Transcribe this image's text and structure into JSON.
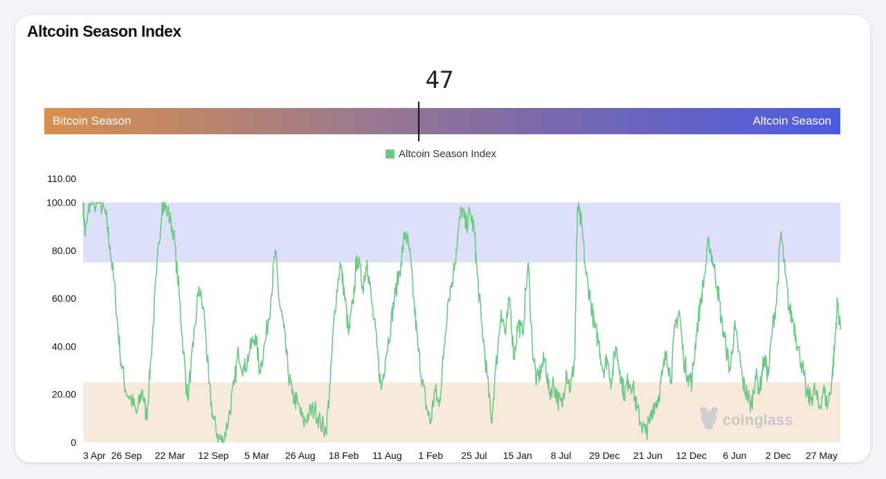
{
  "title": "Altcoin Season Index",
  "gauge": {
    "value": 47,
    "value_label": "47",
    "left_label": "Bitcoin Season",
    "right_label": "Altcoin Season"
  },
  "legend": {
    "label": "Altcoin Season Index",
    "color": "#6cc985"
  },
  "watermark": "coinglass",
  "colors": {
    "line": "#6cc985",
    "altcoin_band": "#dde0f8",
    "bitcoin_band": "#f7e9dc"
  },
  "chart_data": {
    "type": "line",
    "series": [
      {
        "name": "Altcoin Season Index",
        "keypoints": [
          [
            0,
            100
          ],
          [
            0.15,
            86
          ],
          [
            0.5,
            100
          ],
          [
            1.2,
            100
          ],
          [
            1.6,
            95
          ],
          [
            1.9,
            82
          ],
          [
            2.3,
            60
          ],
          [
            2.6,
            38
          ],
          [
            3.0,
            22
          ],
          [
            3.4,
            18
          ],
          [
            3.8,
            12
          ],
          [
            4.2,
            22
          ],
          [
            4.5,
            10
          ],
          [
            4.8,
            35
          ],
          [
            5.2,
            70
          ],
          [
            5.6,
            100
          ],
          [
            6.0,
            96
          ],
          [
            6.4,
            88
          ],
          [
            6.8,
            62
          ],
          [
            7.1,
            38
          ],
          [
            7.4,
            18
          ],
          [
            7.8,
            40
          ],
          [
            8.2,
            65
          ],
          [
            8.6,
            52
          ],
          [
            8.9,
            25
          ],
          [
            9.2,
            10
          ],
          [
            9.6,
            2
          ],
          [
            9.9,
            0
          ],
          [
            10.3,
            10
          ],
          [
            10.7,
            24
          ],
          [
            11.0,
            38
          ],
          [
            11.4,
            30
          ],
          [
            11.8,
            38
          ],
          [
            12.2,
            45
          ],
          [
            12.5,
            30
          ],
          [
            12.9,
            42
          ],
          [
            13.3,
            60
          ],
          [
            13.6,
            80
          ],
          [
            13.9,
            58
          ],
          [
            14.2,
            48
          ],
          [
            14.5,
            30
          ],
          [
            14.8,
            20
          ],
          [
            15.2,
            16
          ],
          [
            15.6,
            8
          ],
          [
            16.0,
            12
          ],
          [
            16.4,
            14
          ],
          [
            16.8,
            8
          ],
          [
            17.2,
            5
          ],
          [
            17.5,
            25
          ],
          [
            17.8,
            55
          ],
          [
            18.2,
            75
          ],
          [
            18.5,
            62
          ],
          [
            18.8,
            45
          ],
          [
            19.1,
            58
          ],
          [
            19.4,
            78
          ],
          [
            19.8,
            65
          ],
          [
            20.1,
            76
          ],
          [
            20.4,
            60
          ],
          [
            20.8,
            40
          ],
          [
            21.1,
            22
          ],
          [
            21.4,
            35
          ],
          [
            21.8,
            50
          ],
          [
            22.1,
            62
          ],
          [
            22.5,
            75
          ],
          [
            22.8,
            88
          ],
          [
            23.1,
            80
          ],
          [
            23.4,
            60
          ],
          [
            23.7,
            40
          ],
          [
            24.0,
            26
          ],
          [
            24.3,
            15
          ],
          [
            24.6,
            8
          ],
          [
            24.9,
            22
          ],
          [
            25.2,
            15
          ],
          [
            25.5,
            35
          ],
          [
            25.8,
            58
          ],
          [
            26.2,
            70
          ],
          [
            26.5,
            85
          ],
          [
            26.8,
            98
          ],
          [
            27.1,
            90
          ],
          [
            27.4,
            96
          ],
          [
            27.7,
            88
          ],
          [
            27.9,
            70
          ],
          [
            28.2,
            50
          ],
          [
            28.6,
            28
          ],
          [
            28.9,
            8
          ],
          [
            29.2,
            30
          ],
          [
            29.6,
            55
          ],
          [
            29.9,
            45
          ],
          [
            30.2,
            60
          ],
          [
            30.5,
            35
          ],
          [
            30.8,
            50
          ],
          [
            31.1,
            45
          ],
          [
            31.5,
            75
          ],
          [
            31.8,
            40
          ],
          [
            32.1,
            25
          ],
          [
            32.4,
            30
          ],
          [
            32.7,
            35
          ],
          [
            33.0,
            20
          ],
          [
            33.3,
            25
          ],
          [
            33.6,
            18
          ],
          [
            33.9,
            15
          ],
          [
            34.2,
            30
          ],
          [
            34.5,
            22
          ],
          [
            34.8,
            35
          ],
          [
            35.0,
            98
          ],
          [
            35.3,
            90
          ],
          [
            35.6,
            70
          ],
          [
            35.9,
            60
          ],
          [
            36.2,
            48
          ],
          [
            36.5,
            42
          ],
          [
            36.8,
            30
          ],
          [
            37.1,
            35
          ],
          [
            37.4,
            25
          ],
          [
            37.7,
            40
          ],
          [
            38.0,
            30
          ],
          [
            38.3,
            20
          ],
          [
            38.6,
            26
          ],
          [
            38.9,
            24
          ],
          [
            39.2,
            14
          ],
          [
            39.5,
            8
          ],
          [
            39.8,
            4
          ],
          [
            40.1,
            8
          ],
          [
            40.4,
            16
          ],
          [
            40.7,
            18
          ],
          [
            41.0,
            28
          ],
          [
            41.3,
            38
          ],
          [
            41.6,
            26
          ],
          [
            41.9,
            48
          ],
          [
            42.2,
            55
          ],
          [
            42.5,
            35
          ],
          [
            42.8,
            28
          ],
          [
            43.1,
            25
          ],
          [
            43.4,
            45
          ],
          [
            43.7,
            58
          ],
          [
            44.0,
            70
          ],
          [
            44.3,
            84
          ],
          [
            44.6,
            75
          ],
          [
            44.9,
            65
          ],
          [
            45.2,
            50
          ],
          [
            45.5,
            40
          ],
          [
            45.8,
            30
          ],
          [
            46.1,
            48
          ],
          [
            46.4,
            38
          ],
          [
            46.7,
            25
          ],
          [
            47.0,
            20
          ],
          [
            47.3,
            15
          ],
          [
            47.6,
            28
          ],
          [
            47.9,
            22
          ],
          [
            48.2,
            35
          ],
          [
            48.5,
            28
          ],
          [
            48.8,
            48
          ],
          [
            49.1,
            60
          ],
          [
            49.4,
            88
          ],
          [
            49.7,
            70
          ],
          [
            50.0,
            55
          ],
          [
            50.3,
            50
          ],
          [
            50.6,
            40
          ],
          [
            50.9,
            32
          ],
          [
            51.2,
            20
          ],
          [
            51.5,
            18
          ],
          [
            51.8,
            22
          ],
          [
            52.1,
            14
          ],
          [
            52.4,
            22
          ],
          [
            52.7,
            15
          ],
          [
            53.0,
            26
          ],
          [
            53.2,
            40
          ],
          [
            53.4,
            59
          ],
          [
            53.6,
            47
          ]
        ]
      }
    ],
    "x_tick_labels": [
      "3 Apr",
      "26 Sep",
      "22 Mar",
      "12 Sep",
      "5 Mar",
      "26 Aug",
      "18 Feb",
      "11 Aug",
      "1 Feb",
      "25 Jul",
      "15 Jan",
      "8 Jul",
      "29 Dec",
      "21 Jun",
      "12 Dec",
      "6 Jun",
      "2 Dec",
      "27 May"
    ],
    "y_tick_labels": [
      "0",
      "20.00",
      "40.00",
      "60.00",
      "80.00",
      "100.00",
      "110.00"
    ],
    "y_ticks": [
      0,
      20,
      40,
      60,
      80,
      100,
      110
    ],
    "ylim": [
      0,
      110
    ],
    "bands": [
      {
        "from": 75,
        "to": 100,
        "color": "#dde0f8"
      },
      {
        "from": 0,
        "to": 25,
        "color": "#f7e9dc"
      }
    ],
    "legend_position": "top-center",
    "grid": false
  }
}
